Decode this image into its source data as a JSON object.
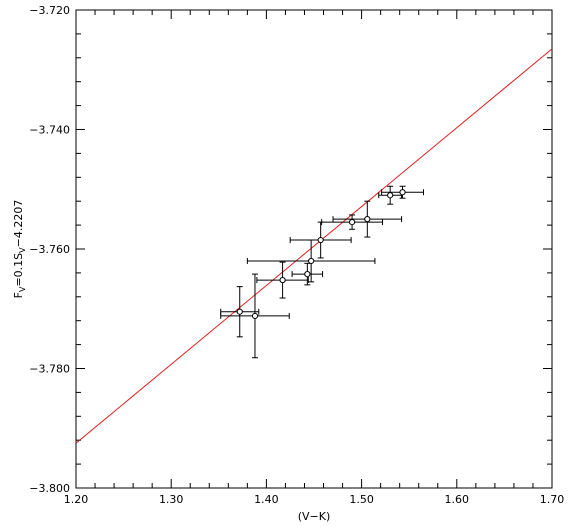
{
  "chart_data": {
    "type": "scatter",
    "title": "",
    "xlabel": "(V−K)",
    "ylabel": "F",
    "ylabel_parts": {
      "base": "F",
      "sub": "V",
      "mid": "=0.1S",
      "sub2": "V",
      "end": "−4.2207"
    },
    "xlim": [
      1.2,
      1.7
    ],
    "ylim": [
      -3.8,
      -3.72
    ],
    "x_ticks": [
      1.2,
      1.3,
      1.4,
      1.5,
      1.6,
      1.7
    ],
    "x_tick_labels": [
      "1.20",
      "1.30",
      "1.40",
      "1.50",
      "1.60",
      "1.70"
    ],
    "y_ticks": [
      -3.72,
      -3.74,
      -3.76,
      -3.78,
      -3.8
    ],
    "y_tick_labels": [
      "−3.720",
      "−3.740",
      "−3.760",
      "−3.780",
      "−3.800"
    ],
    "grid": false,
    "fit_line": {
      "color": "#e02020",
      "points": [
        [
          1.2,
          -3.7925
        ],
        [
          1.7,
          -3.7265
        ]
      ]
    },
    "points": [
      {
        "x": 1.372,
        "y": -3.7705,
        "xerr": 0.02,
        "yerr": 0.0042
      },
      {
        "x": 1.388,
        "y": -3.7712,
        "xerr": 0.036,
        "yerr": 0.007
      },
      {
        "x": 1.417,
        "y": -3.7652,
        "xerr": 0.027,
        "yerr": 0.003
      },
      {
        "x": 1.443,
        "y": -3.7642,
        "xerr": 0.016,
        "yerr": 0.0018
      },
      {
        "x": 1.447,
        "y": -3.762,
        "xerr": 0.067,
        "yerr": 0.0035
      },
      {
        "x": 1.457,
        "y": -3.7585,
        "xerr": 0.032,
        "yerr": 0.003
      },
      {
        "x": 1.49,
        "y": -3.7555,
        "xerr": 0.032,
        "yerr": 0.0012
      },
      {
        "x": 1.506,
        "y": -3.755,
        "xerr": 0.036,
        "yerr": 0.003
      },
      {
        "x": 1.53,
        "y": -3.751,
        "xerr": 0.012,
        "yerr": 0.0015
      },
      {
        "x": 1.543,
        "y": -3.7505,
        "xerr": 0.022,
        "yerr": 0.001
      }
    ]
  }
}
